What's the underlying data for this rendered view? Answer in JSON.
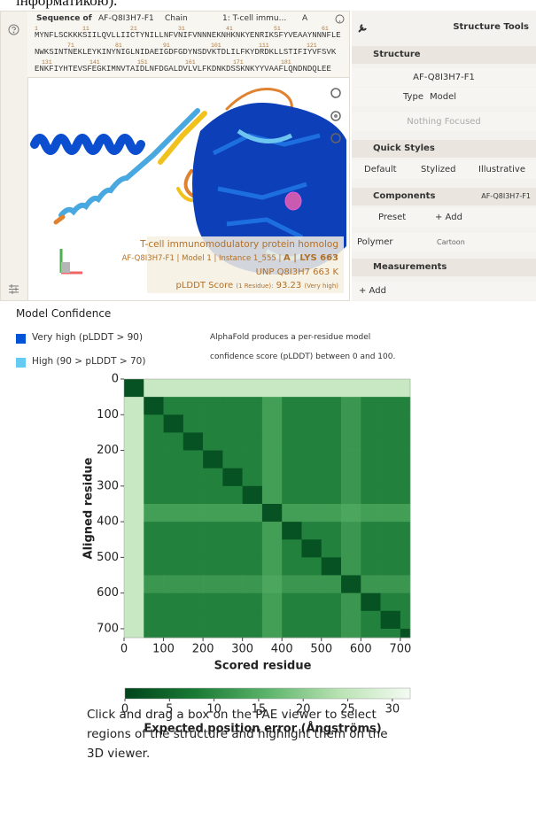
{
  "header_fragment": "інформатикою).",
  "viewer": {
    "sequence_label": "Sequence of",
    "entry_select": "AF-Q8I3H7-F1",
    "chain_label": "Chain",
    "chain_select": "1: T-cell immu...",
    "asym_select": "A",
    "sequence_rows": [
      {
        "numbers": [
          1,
          11,
          21,
          31,
          41,
          51,
          61
        ],
        "sequence": "MYNFLSCKKKSIILQVLLIICTYNILLNFVNIFVNNNEKNHKNKYENRIKSFYVEAAYNNNFLE"
      },
      {
        "numbers": [
          71,
          81,
          91,
          101,
          111,
          121
        ],
        "sequence": "NWKSINTNEKLEYKINYNIGLNIDAEIGDFGDYNSDVKTDLILFKYDRDKLLSTIFIYVFSVK"
      },
      {
        "numbers": [
          131,
          141,
          151,
          161,
          171,
          181
        ],
        "sequence": "ENKFIYHTEVSFEGKIMNVTAIDLNFDGALDVLVLFKDNKDSSKNKYYVAAFLQNDNDQLEE"
      }
    ],
    "info": {
      "protein": "T-cell immunomodulatory protein homolog",
      "model_line": "AF-Q8I3H7-F1 | Model 1 | Instance 1_555 |",
      "residue": "A | LYS 663",
      "unp": "UNP Q8I3H7 663 K",
      "score_label": "pLDDT Score",
      "score_scope": "(1 Residue):",
      "score_value": 93.23,
      "score_class": "(Very high)"
    }
  },
  "tools": {
    "title": "Structure Tools",
    "structure": {
      "header": "Structure",
      "entry": "AF-Q8I3H7-F1",
      "type_label": "Type",
      "type_value": "Model",
      "focus": "Nothing Focused"
    },
    "quick_styles": {
      "header": "Quick Styles",
      "options": [
        "Default",
        "Stylized",
        "Illustrative"
      ]
    },
    "components": {
      "header": "Components",
      "entry": "AF-Q8I3H7-F1",
      "preset": "Preset",
      "add": "+ Add",
      "polymer": "Polymer",
      "representation": "Cartoon"
    },
    "measurements": {
      "header": "Measurements",
      "add": "+ Add"
    }
  },
  "confidence": {
    "title": "Model Confidence",
    "legend": [
      {
        "label": "Very high (pLDDT > 90)",
        "color": "#0053d6"
      },
      {
        "label": "High (90 > pLDDT > 70)",
        "color": "#65cbf3"
      }
    ],
    "note_lines": [
      "AlphaFold produces a per-residue model",
      "confidence score (pLDDT) between 0 and 100."
    ]
  },
  "chart_data": {
    "type": "heatmap",
    "x_label": "Scored residue",
    "y_label": "Aligned residue",
    "bins": [
      0,
      50,
      100,
      150,
      200,
      250,
      300,
      350,
      400,
      450,
      500,
      550,
      600,
      650,
      700,
      725
    ],
    "xlim": [
      0,
      725
    ],
    "ylim": [
      0,
      725
    ],
    "xticks": [
      0,
      100,
      200,
      300,
      400,
      500,
      600,
      700
    ],
    "yticks": [
      0,
      100,
      200,
      300,
      400,
      500,
      600,
      700
    ],
    "z": [
      [
        2,
        26,
        26,
        26,
        26,
        26,
        26,
        26,
        26,
        26,
        26,
        26,
        26,
        26,
        26
      ],
      [
        26,
        2,
        9,
        9,
        9,
        9,
        9,
        13,
        9,
        9,
        9,
        12,
        9,
        9,
        9
      ],
      [
        26,
        9,
        2,
        9,
        9,
        9,
        9,
        13,
        9,
        9,
        9,
        12,
        9,
        9,
        9
      ],
      [
        26,
        9,
        9,
        2,
        9,
        9,
        9,
        13,
        9,
        9,
        9,
        12,
        9,
        9,
        9
      ],
      [
        26,
        9,
        9,
        9,
        2,
        9,
        9,
        13,
        9,
        9,
        9,
        12,
        9,
        9,
        9
      ],
      [
        26,
        9,
        9,
        9,
        9,
        2,
        9,
        13,
        9,
        9,
        9,
        12,
        9,
        9,
        9
      ],
      [
        26,
        9,
        9,
        9,
        9,
        9,
        2,
        13,
        9,
        9,
        9,
        12,
        9,
        9,
        9
      ],
      [
        26,
        13,
        13,
        13,
        13,
        13,
        13,
        2,
        13,
        13,
        13,
        14,
        13,
        13,
        13
      ],
      [
        26,
        9,
        9,
        9,
        9,
        9,
        9,
        13,
        2,
        9,
        9,
        12,
        9,
        9,
        9
      ],
      [
        26,
        9,
        9,
        9,
        9,
        9,
        9,
        13,
        9,
        2,
        9,
        12,
        9,
        9,
        9
      ],
      [
        26,
        9,
        9,
        9,
        9,
        9,
        9,
        13,
        9,
        9,
        2,
        12,
        9,
        9,
        9
      ],
      [
        26,
        12,
        12,
        12,
        12,
        12,
        12,
        14,
        12,
        12,
        12,
        2,
        12,
        12,
        12
      ],
      [
        26,
        9,
        9,
        9,
        9,
        9,
        9,
        13,
        9,
        9,
        9,
        12,
        2,
        9,
        9
      ],
      [
        26,
        9,
        9,
        9,
        9,
        9,
        9,
        13,
        9,
        9,
        9,
        12,
        9,
        2,
        9
      ],
      [
        26,
        9,
        9,
        9,
        9,
        9,
        9,
        13,
        9,
        9,
        9,
        12,
        9,
        9,
        2
      ]
    ],
    "colorscale": [
      "#00441b",
      "#1a7a35",
      "#5cb46a",
      "#b9e2b3",
      "#f4fbf2"
    ],
    "colorbar_label": "Expected position error (Ångströms)",
    "clim": [
      0,
      32
    ],
    "cticks": [
      0,
      5,
      10,
      15,
      20,
      25,
      30
    ]
  },
  "instructions": "Click and drag a box on the PAE viewer to select regions of the structure and highlight them on the 3D viewer."
}
